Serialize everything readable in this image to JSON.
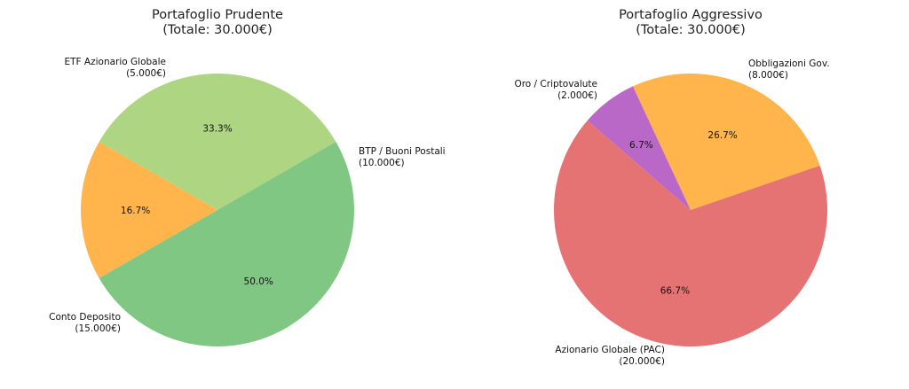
{
  "chart_data": [
    {
      "type": "pie",
      "title": "Portafoglio Prudente",
      "subtitle": "(Totale: 30.000€)",
      "slices": [
        {
          "label": "BTP / Buoni Postali",
          "amount": "(10.000€)",
          "value": 10000,
          "pct": "33.3%",
          "color": "#aed581"
        },
        {
          "label": "ETF Azionario Globale",
          "amount": "(5.000€)",
          "value": 5000,
          "pct": "16.7%",
          "color": "#ffb54c"
        },
        {
          "label": "Conto Deposito",
          "amount": "(15.000€)",
          "value": 15000,
          "pct": "50.0%",
          "color": "#81c784"
        }
      ]
    },
    {
      "type": "pie",
      "title": "Portafoglio Aggressivo",
      "subtitle": "(Totale: 30.000€)",
      "slices": [
        {
          "label": "Obbligazioni Gov.",
          "amount": "(8.000€)",
          "value": 8000,
          "pct": "26.7%",
          "color": "#ffb54c"
        },
        {
          "label": "Oro / Criptovalute",
          "amount": "(2.000€)",
          "value": 2000,
          "pct": "6.7%",
          "color": "#ba68c8"
        },
        {
          "label": "Azionario Globale (PAC)",
          "amount": "(20.000€)",
          "value": 20000,
          "pct": "66.7%",
          "color": "#e57373"
        }
      ]
    }
  ]
}
